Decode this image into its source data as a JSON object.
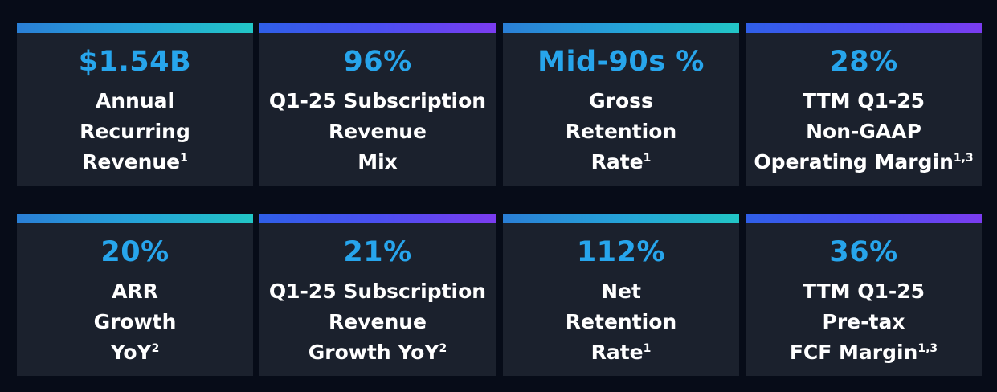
{
  "metrics": [
    {
      "value": "$1.54B",
      "lines": [
        "Annual",
        "Recurring",
        "Revenue"
      ],
      "footnote": "1"
    },
    {
      "value": "96%",
      "lines": [
        "Q1-25 Subscription",
        "Revenue",
        "Mix"
      ],
      "footnote": ""
    },
    {
      "value": "Mid-90s %",
      "lines": [
        "Gross",
        "Retention",
        "Rate"
      ],
      "footnote": "1"
    },
    {
      "value": "28%",
      "lines": [
        "TTM Q1-25",
        "Non-GAAP",
        "Operating Margin"
      ],
      "footnote": "1,3"
    },
    {
      "value": "20%",
      "lines": [
        "ARR",
        "Growth",
        "YoY"
      ],
      "footnote": "2"
    },
    {
      "value": "21%",
      "lines": [
        "Q1-25 Subscription",
        "Revenue",
        "Growth YoY"
      ],
      "footnote": "2"
    },
    {
      "value": "112%",
      "lines": [
        "Net",
        "Retention",
        "Rate"
      ],
      "footnote": "1"
    },
    {
      "value": "36%",
      "lines": [
        "TTM Q1-25",
        "Pre-tax",
        "FCF Margin"
      ],
      "footnote": "1,3"
    }
  ],
  "colors": {
    "background": "#070c18",
    "card": "#1b212d",
    "value_text": "#27a5ec",
    "label_text": "#ffffff",
    "accent_teal": "#22c6c6",
    "accent_violet": "#7b3cf0"
  }
}
